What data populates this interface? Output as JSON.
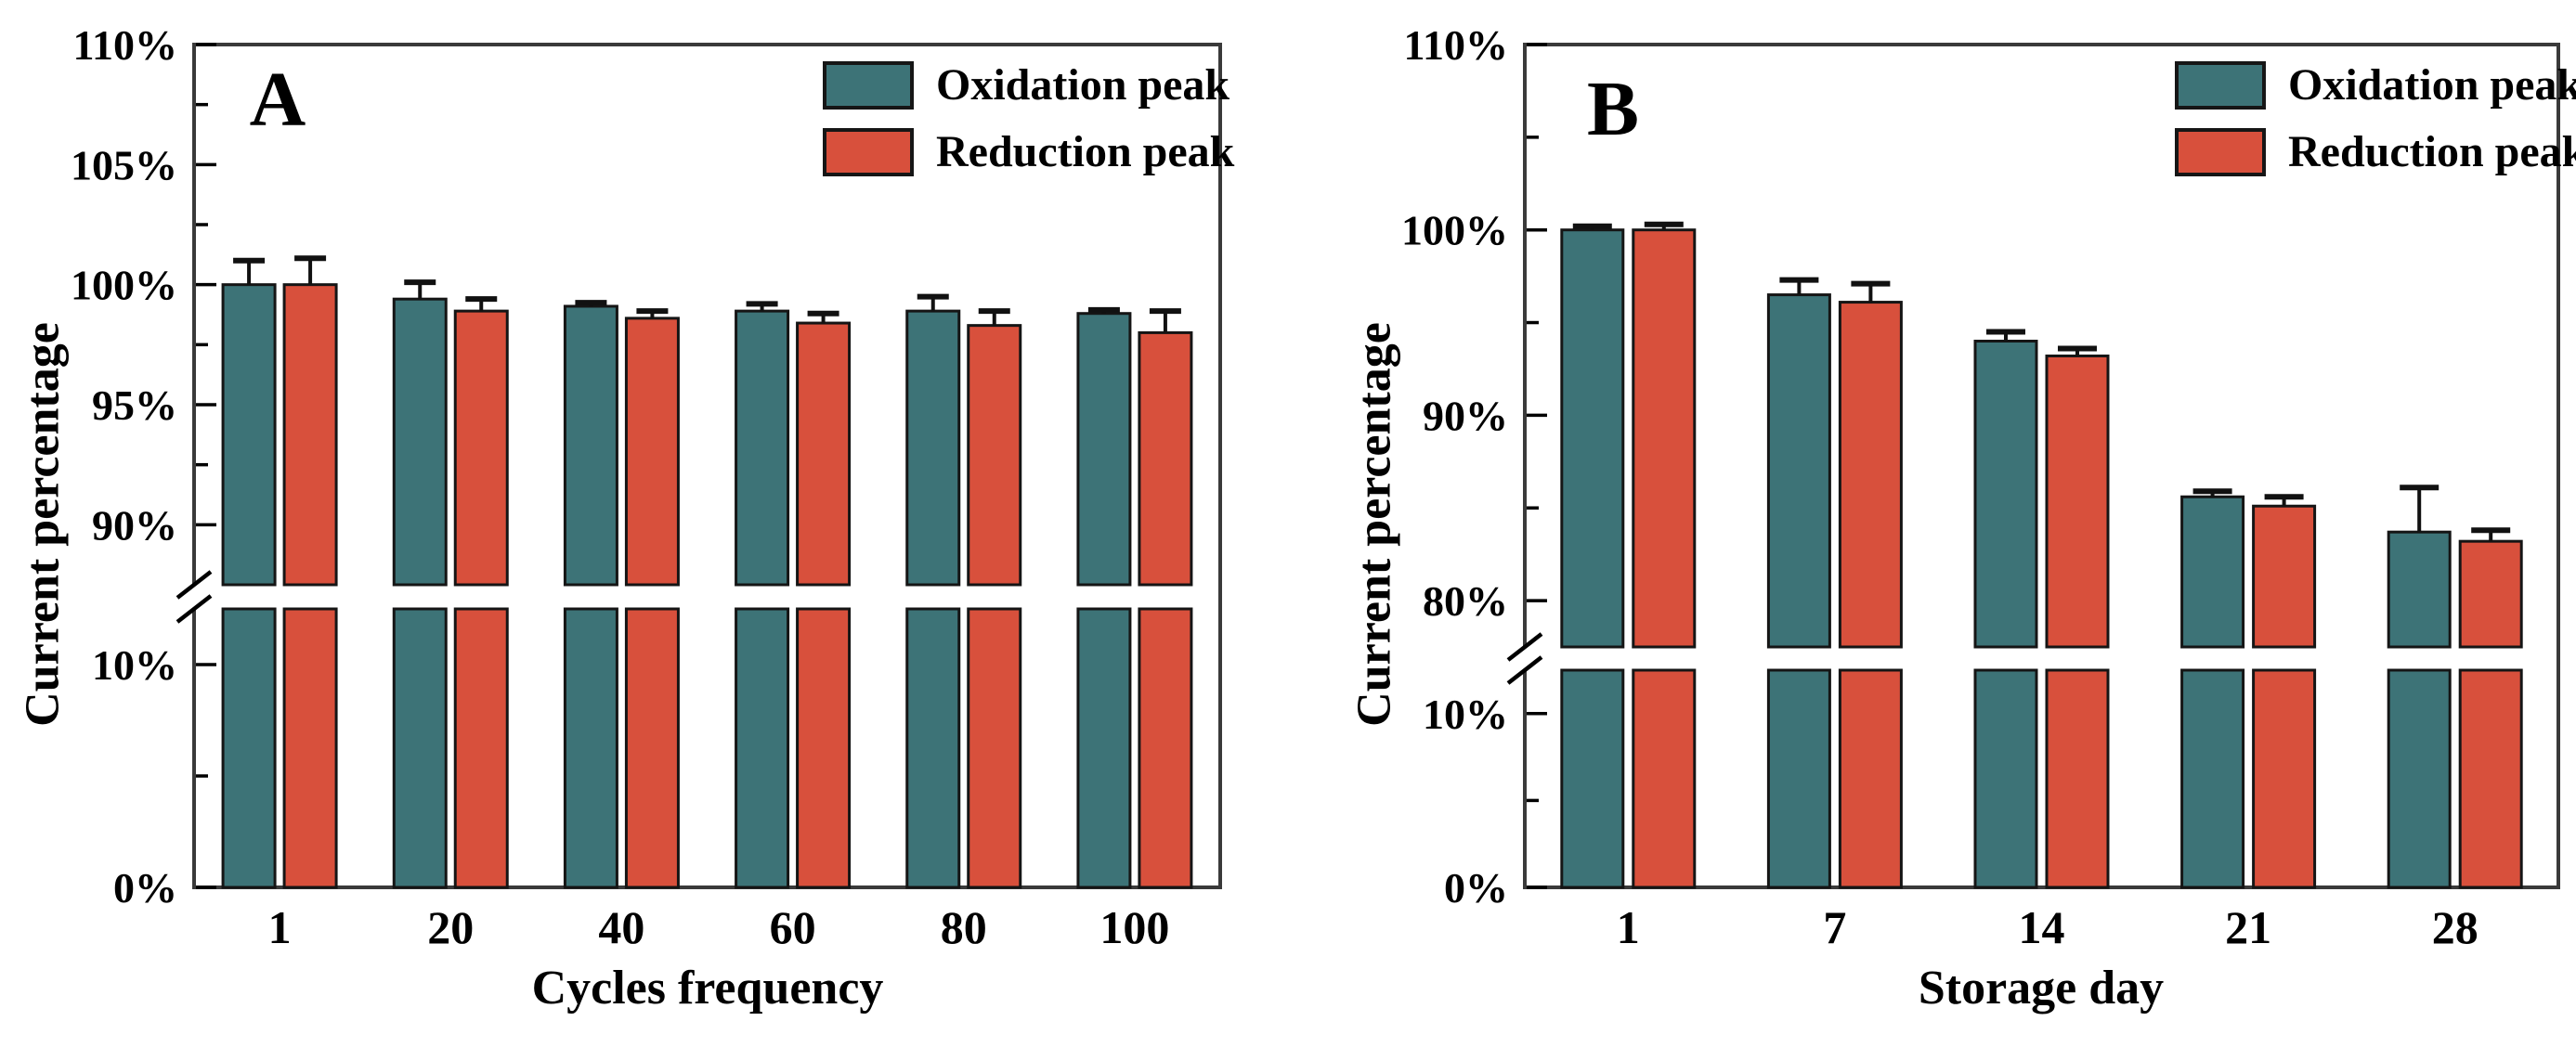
{
  "figure": {
    "background": "#ffffff",
    "frame_color": "#3a3a3a",
    "text_color": "#000000"
  },
  "colors": {
    "oxidation": "#3D7377",
    "reduction": "#D8503C",
    "bar_outline": "#151515",
    "error_bar": "#111111",
    "tick": "#000000"
  },
  "chart_data": [
    {
      "type": "bar",
      "panel_label": "A",
      "xlabel": "Cycles frequency",
      "ylabel": "Current percentage",
      "unit": "%",
      "grid": false,
      "legend_position": "top-right",
      "categories": [
        "1",
        "20",
        "40",
        "60",
        "80",
        "100"
      ],
      "series": [
        {
          "name": "Oxidation peak",
          "color_key": "oxidation",
          "values": [
            100.0,
            99.4,
            99.1,
            98.9,
            98.9,
            98.8
          ],
          "errors": [
            1.0,
            0.7,
            0.15,
            0.3,
            0.6,
            0.15
          ]
        },
        {
          "name": "Reduction peak",
          "color_key": "reduction",
          "values": [
            100.0,
            98.9,
            98.6,
            98.4,
            98.3,
            98.0
          ],
          "errors": [
            1.1,
            0.5,
            0.3,
            0.4,
            0.6,
            0.9
          ]
        }
      ],
      "y_axis": {
        "broken": true,
        "top_segment": {
          "min": 87.5,
          "max": 110,
          "major_ticks": [
            110,
            105,
            100,
            95,
            90
          ],
          "minor_ticks": [
            107.5,
            102.5,
            97.5,
            92.5
          ]
        },
        "bottom_segment": {
          "min": 0,
          "max": 12.5,
          "major_ticks": [
            10,
            0
          ],
          "minor_ticks": [
            5
          ]
        }
      }
    },
    {
      "type": "bar",
      "panel_label": "B",
      "xlabel": "Storage day",
      "ylabel": "Current percentage",
      "unit": "%",
      "grid": false,
      "legend_position": "top-right",
      "categories": [
        "1",
        "7",
        "14",
        "21",
        "28"
      ],
      "series": [
        {
          "name": "Oxidation peak",
          "color_key": "oxidation",
          "values": [
            100.0,
            96.5,
            94.0,
            85.6,
            83.7
          ],
          "errors": [
            0.2,
            0.8,
            0.5,
            0.3,
            2.4
          ]
        },
        {
          "name": "Reduction peak",
          "color_key": "reduction",
          "values": [
            100.0,
            96.1,
            93.2,
            85.1,
            83.2
          ],
          "errors": [
            0.3,
            1.0,
            0.4,
            0.5,
            0.6
          ]
        }
      ],
      "y_axis": {
        "broken": true,
        "top_segment": {
          "min": 77.5,
          "max": 110,
          "major_ticks": [
            110,
            100,
            90,
            80
          ],
          "minor_ticks": [
            105,
            95,
            85
          ]
        },
        "bottom_segment": {
          "min": 0,
          "max": 12.5,
          "major_ticks": [
            10,
            0
          ],
          "minor_ticks": [
            5
          ]
        }
      }
    }
  ]
}
